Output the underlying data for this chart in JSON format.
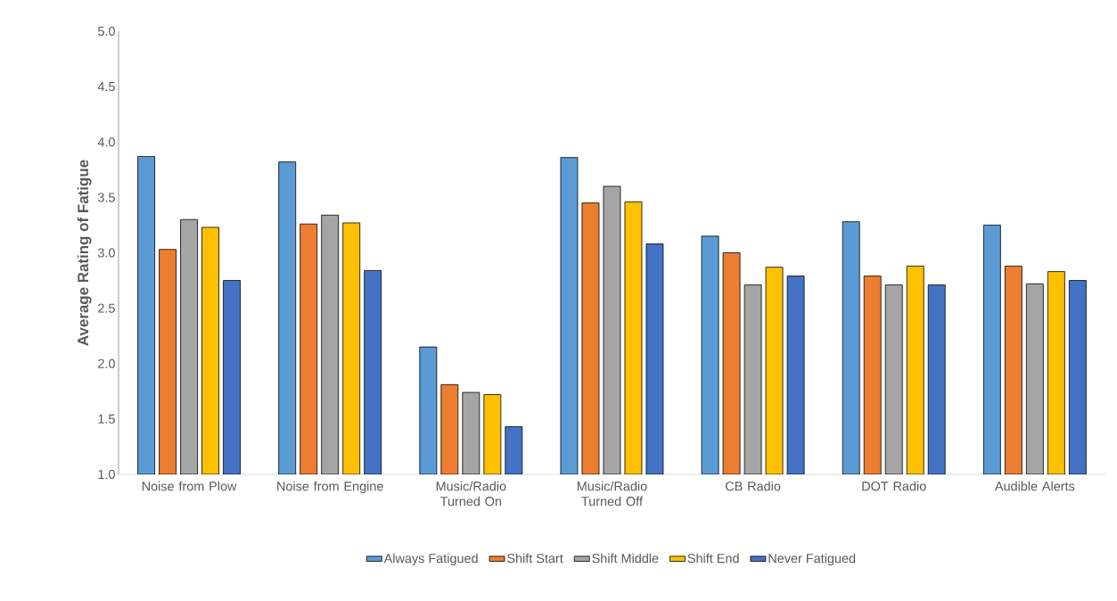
{
  "chart_data": {
    "type": "bar",
    "ylabel": "Average Rating of Fatigue",
    "categories": [
      "Noise from Plow",
      "Noise from Engine",
      "Music/Radio Turned On",
      "Music/Radio Turned Off",
      "CB Radio",
      "DOT Radio",
      "Audible Alerts"
    ],
    "series": [
      {
        "name": "Always Fatigued",
        "color": "#5b9bd5",
        "values": [
          3.87,
          3.82,
          2.15,
          3.86,
          3.15,
          3.28,
          3.25
        ]
      },
      {
        "name": "Shift Start",
        "color": "#ed7d31",
        "values": [
          3.03,
          3.26,
          1.81,
          3.45,
          3.0,
          2.79,
          2.88
        ]
      },
      {
        "name": "Shift Middle",
        "color": "#a5a5a5",
        "values": [
          3.3,
          3.34,
          1.74,
          3.6,
          2.71,
          2.71,
          2.72
        ]
      },
      {
        "name": "Shift End",
        "color": "#ffc000",
        "values": [
          3.23,
          3.27,
          1.72,
          3.46,
          2.87,
          2.88,
          2.83
        ]
      },
      {
        "name": "Never Fatigued",
        "color": "#4472c4",
        "values": [
          2.75,
          2.84,
          1.43,
          3.08,
          2.79,
          2.71,
          2.75
        ]
      }
    ],
    "ylim": [
      1.0,
      5.0
    ],
    "yticks": [
      {
        "value": 1.0,
        "label": "1.0"
      },
      {
        "value": 1.5,
        "label": "1.5"
      },
      {
        "value": 2.0,
        "label": "2.0"
      },
      {
        "value": 2.5,
        "label": "2.5"
      },
      {
        "value": 3.0,
        "label": "3.0"
      },
      {
        "value": 3.5,
        "label": "3.5"
      },
      {
        "value": 4.0,
        "label": "4.0"
      },
      {
        "value": 4.5,
        "label": "4.5"
      },
      {
        "value": 5.0,
        "label": "5.0"
      }
    ],
    "grid": false,
    "legend": "bottom"
  }
}
